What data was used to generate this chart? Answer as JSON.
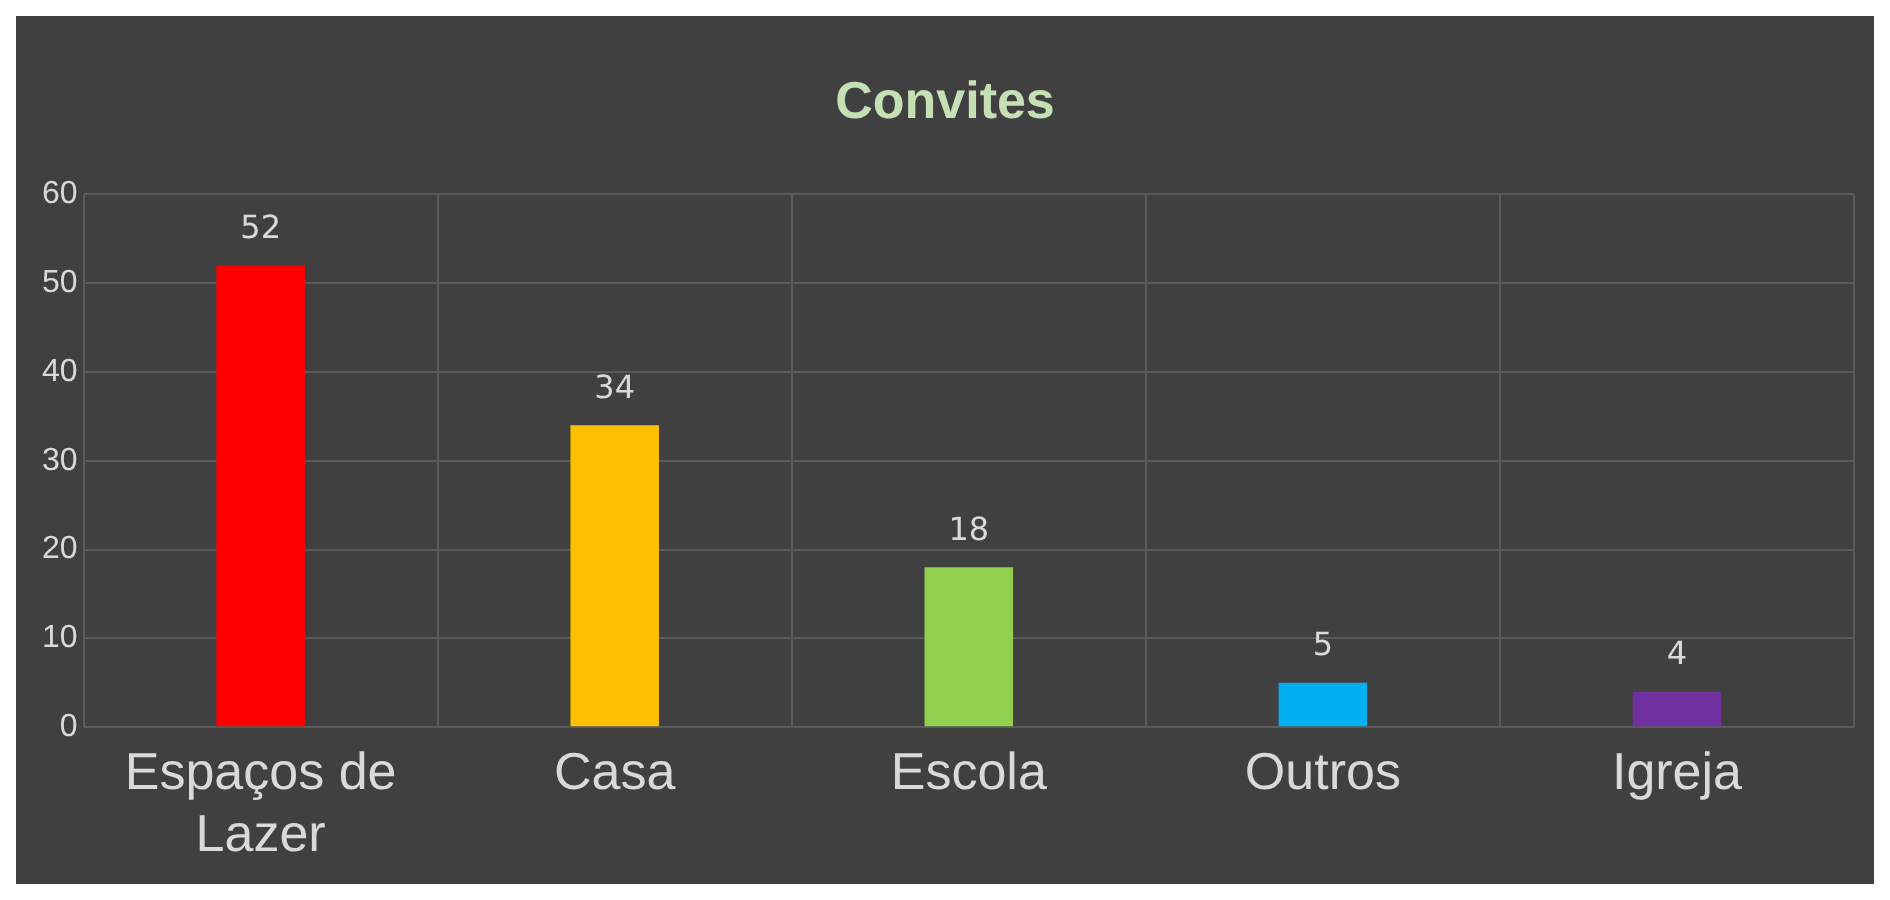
{
  "chart_data": {
    "type": "bar",
    "title": "Convites",
    "categories": [
      "Espaços de Lazer",
      "Casa",
      "Escola",
      "Outros",
      "Igreja"
    ],
    "values": [
      52,
      34,
      18,
      5,
      4
    ],
    "colors": [
      "#ff0000",
      "#ffc000",
      "#92d050",
      "#00b0f0",
      "#7030a0"
    ],
    "ylim": [
      0,
      60
    ],
    "yticks": [
      0,
      10,
      20,
      30,
      40,
      50,
      60
    ],
    "grid": true,
    "data_labels": true
  }
}
